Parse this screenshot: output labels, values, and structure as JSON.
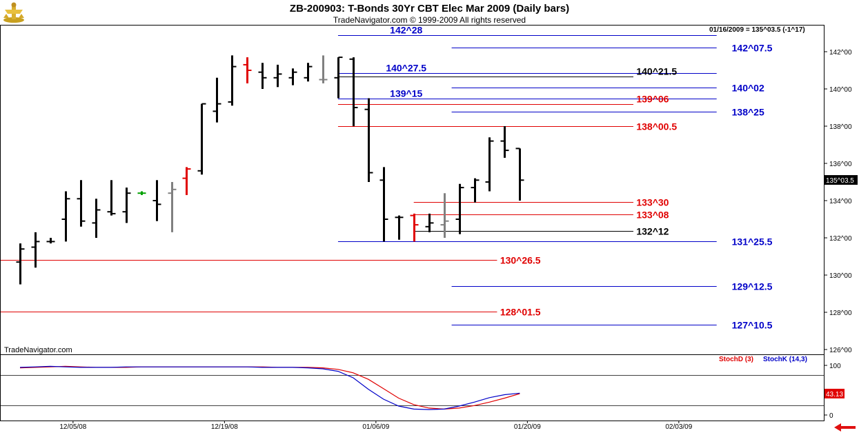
{
  "header": {
    "title": "ZB-200903:  T-Bonds 30Yr CBT Elec Mar 2009  (Daily bars)",
    "subtitle": "TradeNavigator.com © 1999-2009 All rights reserved",
    "last_info": "01/16/2009 = 135^03.5 (-1^17)",
    "watermark": "TradeNavigator.com"
  },
  "colors": {
    "blue": "#0000c8",
    "red": "#e00000",
    "black": "#000000",
    "grey": "#808080",
    "green": "#00a000",
    "last_price_bg": "#000000",
    "stoch_value_bg": "#e00000"
  },
  "chart_data": {
    "type": "ohlc",
    "price_axis": {
      "min": 125.5,
      "max": 143.0,
      "ticks": [
        {
          "value": 142,
          "label": "142^00"
        },
        {
          "value": 140,
          "label": "140^00"
        },
        {
          "value": 138,
          "label": "138^00"
        },
        {
          "value": 136,
          "label": "136^00"
        },
        {
          "value": 134,
          "label": "134^00"
        },
        {
          "value": 132,
          "label": "132^00"
        },
        {
          "value": 130,
          "label": "130^00"
        },
        {
          "value": 128,
          "label": "128^00"
        },
        {
          "value": 126,
          "label": "126^00"
        }
      ],
      "last_price_label": "135^03.5",
      "last_price": 135.11
    },
    "date_axis": {
      "ticks": [
        {
          "index": 3,
          "label": "12/05/08"
        },
        {
          "index": 13,
          "label": "12/19/08"
        },
        {
          "index": 23,
          "label": "01/06/09"
        },
        {
          "index": 33,
          "label": "01/20/09"
        },
        {
          "index": 43,
          "label": "02/03/09"
        }
      ]
    },
    "bars": [
      {
        "i": 0,
        "o": 130.7,
        "h": 131.7,
        "l": 129.5,
        "c": 131.4,
        "color": "black"
      },
      {
        "i": 1,
        "o": 131.5,
        "h": 132.3,
        "l": 130.4,
        "c": 131.8,
        "color": "black"
      },
      {
        "i": 2,
        "o": 131.8,
        "h": 132.0,
        "l": 131.7,
        "c": 131.8,
        "color": "black"
      },
      {
        "i": 3,
        "o": 133.0,
        "h": 134.5,
        "l": 131.8,
        "c": 134.1,
        "color": "black"
      },
      {
        "i": 4,
        "o": 134.1,
        "h": 135.1,
        "l": 132.6,
        "c": 132.9,
        "color": "black"
      },
      {
        "i": 5,
        "o": 132.8,
        "h": 134.1,
        "l": 132.0,
        "c": 133.5,
        "color": "black"
      },
      {
        "i": 6,
        "o": 133.4,
        "h": 135.1,
        "l": 133.2,
        "c": 133.3,
        "color": "black"
      },
      {
        "i": 7,
        "o": 133.4,
        "h": 134.7,
        "l": 132.8,
        "c": 134.4,
        "color": "black"
      },
      {
        "i": 8,
        "o": 134.4,
        "h": 134.5,
        "l": 134.3,
        "c": 134.4,
        "color": "green"
      },
      {
        "i": 9,
        "o": 134.0,
        "h": 135.1,
        "l": 132.9,
        "c": 133.8,
        "color": "black"
      },
      {
        "i": 10,
        "o": 134.4,
        "h": 135.0,
        "l": 132.3,
        "c": 134.6,
        "color": "grey"
      },
      {
        "i": 11,
        "o": 135.2,
        "h": 135.8,
        "l": 134.3,
        "c": 135.7,
        "color": "red"
      },
      {
        "i": 12,
        "o": 135.6,
        "h": 139.2,
        "l": 135.4,
        "c": 139.2,
        "color": "black"
      },
      {
        "i": 13,
        "o": 138.8,
        "h": 140.6,
        "l": 138.2,
        "c": 139.2,
        "color": "black"
      },
      {
        "i": 14,
        "o": 139.3,
        "h": 141.8,
        "l": 139.1,
        "c": 141.2,
        "color": "black"
      },
      {
        "i": 15,
        "o": 141.3,
        "h": 141.7,
        "l": 140.3,
        "c": 141.0,
        "color": "red"
      },
      {
        "i": 16,
        "o": 140.9,
        "h": 141.4,
        "l": 140.0,
        "c": 140.6,
        "color": "black"
      },
      {
        "i": 17,
        "o": 140.6,
        "h": 141.3,
        "l": 140.1,
        "c": 140.8,
        "color": "black"
      },
      {
        "i": 18,
        "o": 140.6,
        "h": 141.1,
        "l": 140.2,
        "c": 140.9,
        "color": "black"
      },
      {
        "i": 19,
        "o": 140.6,
        "h": 141.4,
        "l": 140.4,
        "c": 141.2,
        "color": "black"
      },
      {
        "i": 20,
        "o": 140.5,
        "h": 141.8,
        "l": 140.3,
        "c": 140.5,
        "color": "grey"
      },
      {
        "i": 21,
        "o": 140.6,
        "h": 141.7,
        "l": 139.5,
        "c": 141.7,
        "color": "black"
      },
      {
        "i": 22,
        "o": 141.6,
        "h": 141.7,
        "l": 138.0,
        "c": 139.0,
        "color": "black"
      },
      {
        "i": 23,
        "o": 138.9,
        "h": 139.5,
        "l": 135.0,
        "c": 135.5,
        "color": "black"
      },
      {
        "i": 24,
        "o": 135.1,
        "h": 135.8,
        "l": 131.8,
        "c": 133.0,
        "color": "black"
      },
      {
        "i": 25,
        "o": 133.1,
        "h": 133.2,
        "l": 131.9,
        "c": 133.1,
        "color": "black"
      },
      {
        "i": 26,
        "o": 133.2,
        "h": 133.3,
        "l": 131.8,
        "c": 132.7,
        "color": "red"
      },
      {
        "i": 27,
        "o": 132.6,
        "h": 133.3,
        "l": 132.3,
        "c": 132.8,
        "color": "black"
      },
      {
        "i": 28,
        "o": 132.7,
        "h": 134.4,
        "l": 132.0,
        "c": 132.9,
        "color": "grey"
      },
      {
        "i": 29,
        "o": 133.0,
        "h": 134.9,
        "l": 132.2,
        "c": 134.7,
        "color": "black"
      },
      {
        "i": 30,
        "o": 134.7,
        "h": 135.2,
        "l": 133.9,
        "c": 135.1,
        "color": "black"
      },
      {
        "i": 31,
        "o": 135.0,
        "h": 137.4,
        "l": 134.5,
        "c": 137.2,
        "color": "black"
      },
      {
        "i": 32,
        "o": 137.2,
        "h": 138.0,
        "l": 136.3,
        "c": 136.7,
        "color": "black"
      },
      {
        "i": 33,
        "o": 136.8,
        "h": 136.8,
        "l": 134.0,
        "c": 135.1,
        "color": "black"
      }
    ],
    "levels": [
      {
        "price": 142.875,
        "label": "142^28",
        "color": "blue",
        "start": 21,
        "end": 46,
        "label_at": 25.5,
        "label_side": "line"
      },
      {
        "price": 142.234,
        "label": "142^07.5",
        "color": "blue",
        "start": 28.5,
        "end": 46,
        "label_at": 47,
        "label_side": "right"
      },
      {
        "price": 140.859,
        "label": "140^27.5",
        "color": "blue",
        "start": 21,
        "end": 46,
        "label_at": 25.5,
        "label_side": "line"
      },
      {
        "price": 140.672,
        "label": "140^21.5",
        "color": "black",
        "start": 21,
        "end": 40.5,
        "label_at": 40.7,
        "label_side": "line"
      },
      {
        "price": 140.063,
        "label": "140^02",
        "color": "blue",
        "start": 28.5,
        "end": 46,
        "label_at": 47,
        "label_side": "right"
      },
      {
        "price": 139.469,
        "label": "139^15",
        "color": "blue",
        "start": 21,
        "end": 46,
        "label_at": 25.5,
        "label_side": "line"
      },
      {
        "price": 139.188,
        "label": "139^06",
        "color": "red",
        "start": 21,
        "end": 40.5,
        "label_at": 40.7,
        "label_side": "line"
      },
      {
        "price": 138.781,
        "label": "138^25",
        "color": "blue",
        "start": 28.5,
        "end": 46,
        "label_at": 47,
        "label_side": "right"
      },
      {
        "price": 138.016,
        "label": "138^00.5",
        "color": "red",
        "start": 21,
        "end": 40.5,
        "label_at": 40.7,
        "label_side": "right"
      },
      {
        "price": 133.938,
        "label": "133^30",
        "color": "red",
        "start": 26,
        "end": 40.5,
        "label_at": 40.7,
        "label_side": "right"
      },
      {
        "price": 133.25,
        "label": "133^08",
        "color": "red",
        "start": 26,
        "end": 40.5,
        "label_at": 40.7,
        "label_side": "right"
      },
      {
        "price": 132.375,
        "label": "132^12",
        "color": "black",
        "start": 26,
        "end": 40.5,
        "label_at": 40.7,
        "label_side": "right"
      },
      {
        "price": 131.797,
        "label": "131^25.5",
        "color": "blue",
        "start": 21,
        "end": 46,
        "label_at": 47,
        "label_side": "right"
      },
      {
        "price": 130.828,
        "label": "130^26.5",
        "color": "red",
        "start": -1.3,
        "end": 31.5,
        "label_at": 31.7,
        "label_side": "right"
      },
      {
        "price": 129.391,
        "label": "129^12.5",
        "color": "blue",
        "start": 28.5,
        "end": 46,
        "label_at": 47,
        "label_side": "right"
      },
      {
        "price": 128.047,
        "label": "128^01.5",
        "color": "red",
        "start": -1.3,
        "end": 31.5,
        "label_at": 31.7,
        "label_side": "right"
      },
      {
        "price": 127.328,
        "label": "127^10.5",
        "color": "blue",
        "start": 28.5,
        "end": 46,
        "label_at": 47,
        "label_side": "right"
      }
    ],
    "stochastic": {
      "legend_d": "StochD (3)",
      "legend_k": "StochK (14,3)",
      "ticks": [
        {
          "value": 100,
          "label": "100"
        },
        {
          "value": 0,
          "label": "0"
        }
      ],
      "ref_levels": [
        80,
        20
      ],
      "current_value_label": "43.13",
      "current_value": 43.13,
      "k_values": [
        96,
        97,
        98,
        97,
        96,
        96,
        96,
        97,
        97,
        97,
        97,
        97,
        97,
        97,
        97,
        97,
        96,
        96,
        96,
        95,
        93,
        88,
        75,
        52,
        32,
        18,
        12,
        11,
        12,
        18,
        26,
        35,
        41,
        44
      ],
      "d_values": [
        95,
        96,
        97,
        98,
        97,
        96,
        96,
        96,
        97,
        97,
        97,
        97,
        97,
        97,
        97,
        97,
        97,
        96,
        96,
        96,
        95,
        92,
        85,
        72,
        53,
        34,
        21,
        14,
        12,
        14,
        19,
        26,
        34,
        43
      ]
    }
  }
}
